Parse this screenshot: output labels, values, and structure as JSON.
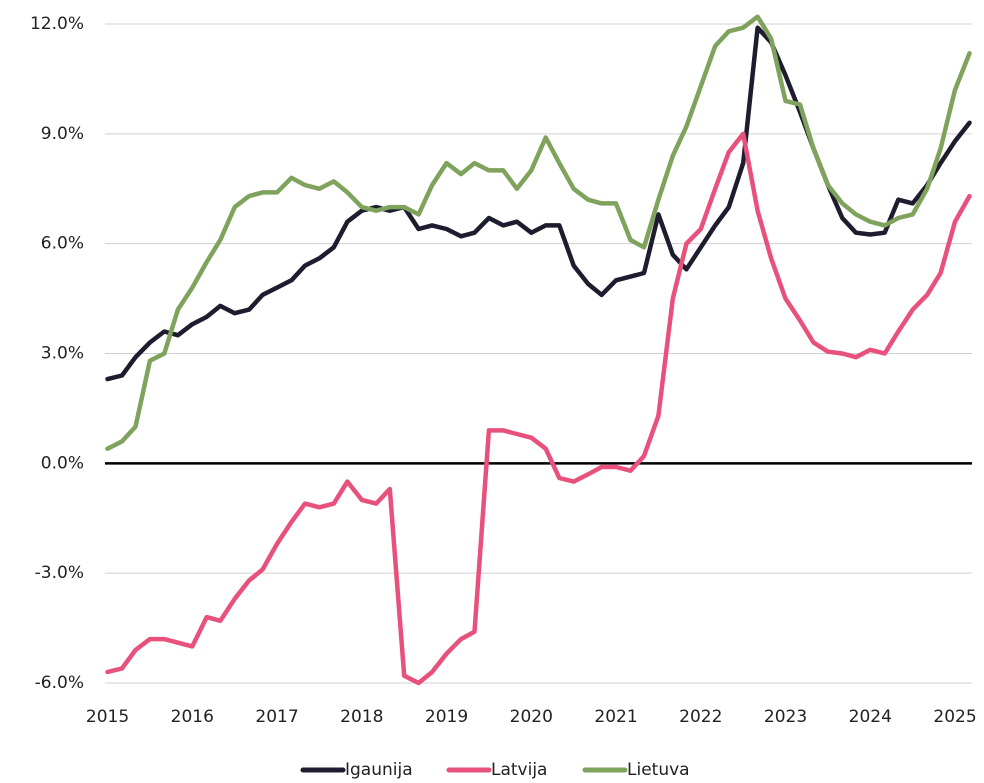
{
  "chart_data": {
    "type": "line",
    "x": [
      2015,
      2015.17,
      2015.33,
      2015.5,
      2015.67,
      2015.83,
      2016,
      2016.17,
      2016.33,
      2016.5,
      2016.67,
      2016.83,
      2017,
      2017.17,
      2017.33,
      2017.5,
      2017.67,
      2017.83,
      2018,
      2018.17,
      2018.33,
      2018.5,
      2018.67,
      2018.83,
      2019,
      2019.17,
      2019.33,
      2019.5,
      2019.67,
      2019.83,
      2020,
      2020.17,
      2020.33,
      2020.5,
      2020.67,
      2020.83,
      2021,
      2021.17,
      2021.33,
      2021.5,
      2021.67,
      2021.83,
      2022,
      2022.17,
      2022.33,
      2022.5,
      2022.67,
      2022.83,
      2023,
      2023.17,
      2023.33,
      2023.5,
      2023.67,
      2023.83,
      2024,
      2024.17,
      2024.33,
      2024.5,
      2024.67,
      2024.83,
      2025,
      2025.17
    ],
    "series": [
      {
        "name": "Igaunija",
        "color": "#1d1d2f",
        "values": [
          2.3,
          2.4,
          2.9,
          3.3,
          3.6,
          3.5,
          3.8,
          4.0,
          4.3,
          4.1,
          4.2,
          4.6,
          4.8,
          5.0,
          5.4,
          5.6,
          5.9,
          6.6,
          6.9,
          7.0,
          6.9,
          7.0,
          6.4,
          6.5,
          6.4,
          6.2,
          6.3,
          6.7,
          6.5,
          6.6,
          6.3,
          6.5,
          6.5,
          5.4,
          4.9,
          4.6,
          5.0,
          5.1,
          5.2,
          6.8,
          5.7,
          5.3,
          5.9,
          6.5,
          7.0,
          8.2,
          11.9,
          11.5,
          10.6,
          9.6,
          8.6,
          7.6,
          6.7,
          6.3,
          6.25,
          6.3,
          7.2,
          7.1,
          7.6,
          8.2,
          8.8,
          9.3
        ]
      },
      {
        "name": "Latvija",
        "color": "#e8517b",
        "values": [
          -5.7,
          -5.6,
          -5.1,
          -4.8,
          -4.8,
          -4.9,
          -5.0,
          -4.2,
          -4.3,
          -3.7,
          -3.2,
          -2.9,
          -2.2,
          -1.6,
          -1.1,
          -1.2,
          -1.1,
          -0.5,
          -1.0,
          -1.1,
          -0.7,
          -5.8,
          -6.0,
          -5.7,
          -5.2,
          -4.8,
          -4.6,
          0.9,
          0.9,
          0.8,
          0.7,
          0.4,
          -0.4,
          -0.5,
          -0.3,
          -0.1,
          -0.1,
          -0.2,
          0.2,
          1.3,
          4.5,
          6.0,
          6.4,
          7.5,
          8.5,
          9.0,
          6.9,
          5.6,
          4.5,
          3.9,
          3.3,
          3.05,
          3.0,
          2.9,
          3.1,
          3.0,
          3.6,
          4.2,
          4.6,
          5.2,
          6.6,
          7.3
        ]
      },
      {
        "name": "Lietuva",
        "color": "#7fa35c",
        "values": [
          0.4,
          0.6,
          1.0,
          2.8,
          3.0,
          4.2,
          4.8,
          5.5,
          6.1,
          7.0,
          7.3,
          7.4,
          7.4,
          7.8,
          7.6,
          7.5,
          7.7,
          7.4,
          7.0,
          6.9,
          7.0,
          7.0,
          6.8,
          7.6,
          8.2,
          7.9,
          8.2,
          8.0,
          8.0,
          7.5,
          8.0,
          8.9,
          8.2,
          7.5,
          7.2,
          7.1,
          7.1,
          6.1,
          5.9,
          7.2,
          8.4,
          9.2,
          10.3,
          11.4,
          11.8,
          11.9,
          12.2,
          11.6,
          9.9,
          9.8,
          8.6,
          7.6,
          7.1,
          6.8,
          6.6,
          6.5,
          6.7,
          6.8,
          7.5,
          8.6,
          10.2,
          11.2
        ]
      }
    ],
    "xlim": [
      2014.97,
      2025.2
    ],
    "xticks": [
      2015,
      2016,
      2017,
      2018,
      2019,
      2020,
      2021,
      2022,
      2023,
      2024,
      2025
    ],
    "ylim": [
      -6,
      12
    ],
    "yticks": [
      {
        "value": -6,
        "label": "-6.0%"
      },
      {
        "value": -3,
        "label": "-3.0%"
      },
      {
        "value": 0,
        "label": "0.0%"
      },
      {
        "value": 3,
        "label": "3.0%"
      },
      {
        "value": 6,
        "label": "6.0%"
      },
      {
        "value": 9,
        "label": "9.0%"
      },
      {
        "value": 12,
        "label": "12.0%"
      }
    ],
    "grid": true,
    "legend": "bottom"
  }
}
